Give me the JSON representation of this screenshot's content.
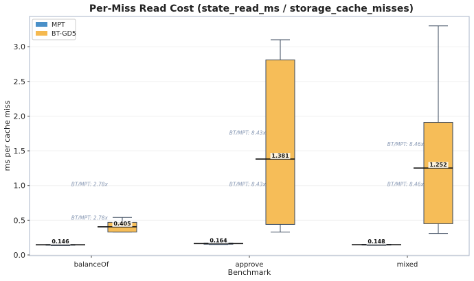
{
  "chart_data": {
    "type": "box",
    "title": "Per-Miss Read Cost (state_read_ms / storage_cache_misses)",
    "xlabel": "Benchmark",
    "ylabel": "ms per cache miss",
    "ylim": [
      0,
      3.43
    ],
    "yticks": [
      "0.0",
      "0.5",
      "1.0",
      "1.5",
      "2.0",
      "2.5",
      "3.0"
    ],
    "ytick_values": [
      0,
      0.5,
      1,
      1.5,
      2,
      2.5,
      3
    ],
    "grid": "horizontal",
    "legend": {
      "placement": "top-left",
      "entries": [
        "MPT",
        "BT-GD5"
      ]
    },
    "colors": {
      "MPT": "#4a90c8",
      "BT-GD5": "#f5b94f",
      "edge": "#3b4a5e"
    },
    "categories": [
      "balanceOf",
      "approve",
      "mixed"
    ],
    "series": [
      {
        "name": "MPT",
        "boxes": [
          {
            "whislo": 0.135,
            "q1": 0.142,
            "med": 0.146,
            "q3": 0.15,
            "whishi": 0.155,
            "label": "0.146"
          },
          {
            "whislo": 0.15,
            "q1": 0.155,
            "med": 0.164,
            "q3": 0.17,
            "whishi": 0.175,
            "label": "0.164"
          },
          {
            "whislo": 0.138,
            "q1": 0.143,
            "med": 0.148,
            "q3": 0.152,
            "whishi": 0.157,
            "label": "0.148"
          }
        ]
      },
      {
        "name": "BT-GD5",
        "boxes": [
          {
            "whislo": 0.33,
            "q1": 0.33,
            "med": 0.405,
            "q3": 0.47,
            "whishi": 0.54,
            "label": "0.405"
          },
          {
            "whislo": 0.33,
            "q1": 0.44,
            "med": 1.381,
            "q3": 2.81,
            "whishi": 3.1,
            "label": "1.381"
          },
          {
            "whislo": 0.31,
            "q1": 0.45,
            "med": 1.252,
            "q3": 1.91,
            "whishi": 3.3,
            "label": "1.252"
          }
        ]
      }
    ],
    "annotations": [
      {
        "category": "balanceOf",
        "text": "BT/MPT: 2.78x",
        "y": 1.02
      },
      {
        "category": "balanceOf",
        "text": "BT/MPT: 2.78x",
        "y": 0.54
      },
      {
        "category": "approve",
        "text": "BT/MPT: 8.43x",
        "y": 1.76
      },
      {
        "category": "approve",
        "text": "BT/MPT: 8.43x",
        "y": 1.02
      },
      {
        "category": "mixed",
        "text": "BT/MPT: 8.46x",
        "y": 1.6
      },
      {
        "category": "mixed",
        "text": "BT/MPT: 8.46x",
        "y": 1.02
      }
    ]
  }
}
